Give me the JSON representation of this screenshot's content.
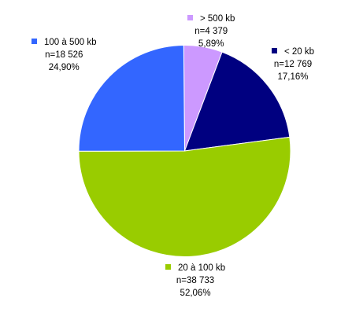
{
  "chart_data": {
    "type": "pie",
    "title": "",
    "slices": [
      {
        "label": "> 500 kb",
        "n": "n=4 379",
        "pct_text": "5,89%",
        "value": 5.89,
        "color": "#cc99ff"
      },
      {
        "label": "< 20 kb",
        "n": "n=12 769",
        "pct_text": "17,16%",
        "value": 17.16,
        "color": "#000080"
      },
      {
        "label": "20 à 100 kb",
        "n": "n=38 733",
        "pct_text": "52,06%",
        "value": 52.06,
        "color": "#99cc00"
      },
      {
        "label": "100 à 500 kb",
        "n": "n=18 526",
        "pct_text": "24,90%",
        "value": 24.9,
        "color": "#3366ff"
      }
    ]
  }
}
